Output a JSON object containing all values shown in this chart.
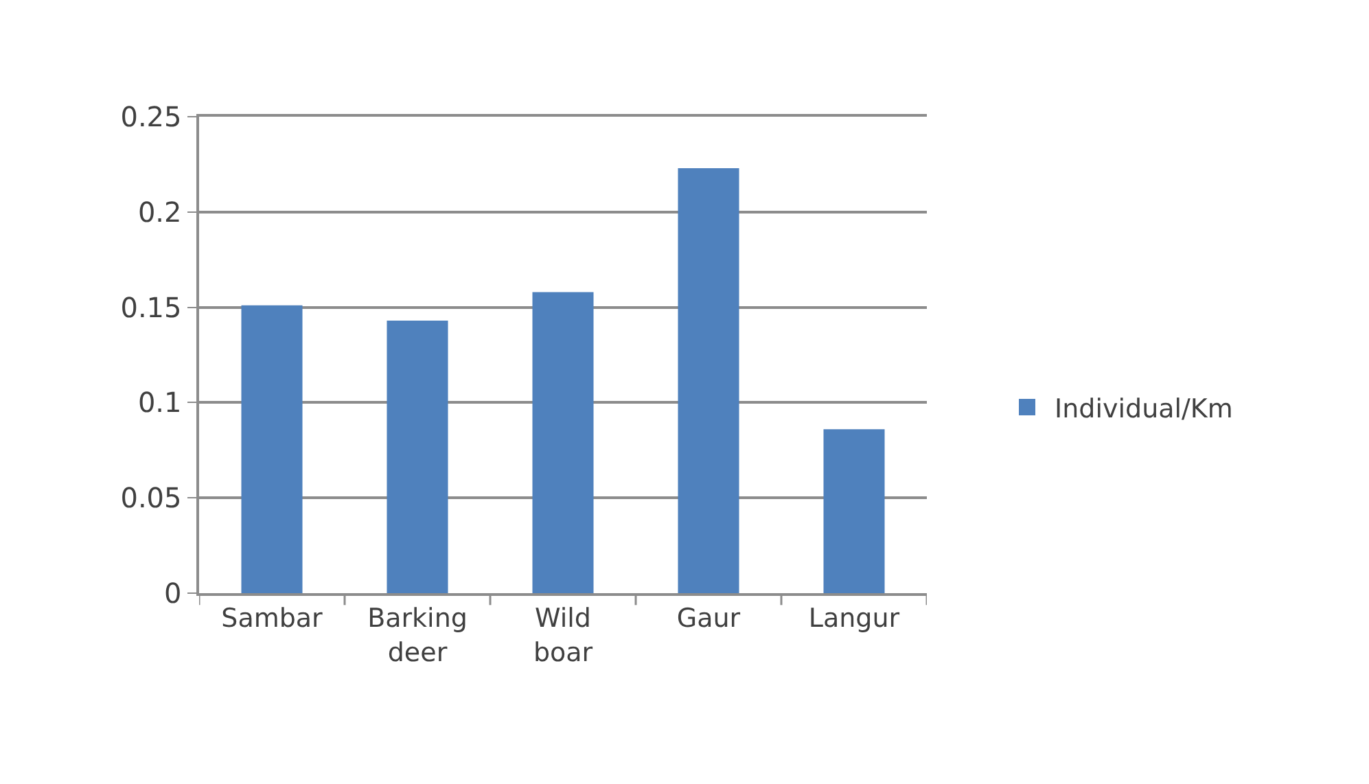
{
  "chart_data": {
    "type": "bar",
    "categories": [
      "Sambar",
      "Barking deer",
      "Wild boar",
      "Gaur",
      "Langur"
    ],
    "series": [
      {
        "name": "Individual/Km",
        "color": "#4f81bd",
        "values": [
          0.151,
          0.143,
          0.158,
          0.223,
          0.086
        ]
      }
    ],
    "ylim": [
      0,
      0.25
    ],
    "yticks": [
      0,
      0.05,
      0.1,
      0.15,
      0.2,
      0.25
    ],
    "grid": "y",
    "legend": "right"
  }
}
